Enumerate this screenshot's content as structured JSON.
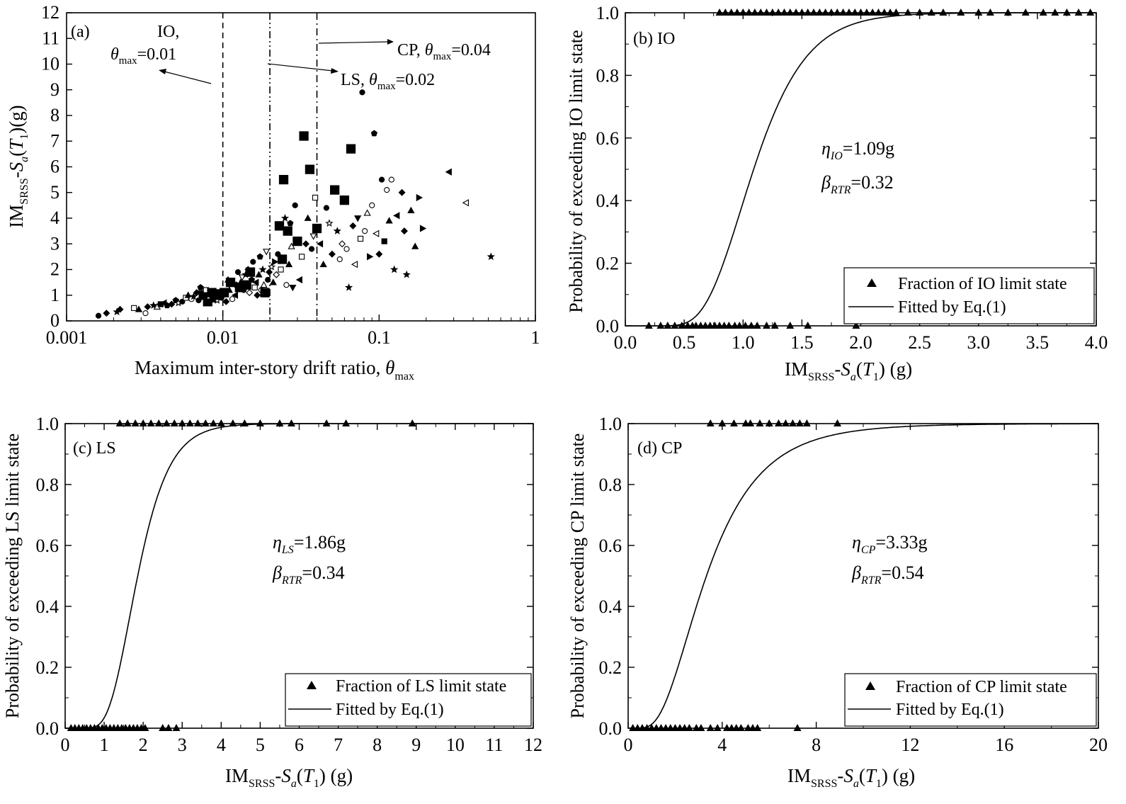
{
  "chart_data": [
    {
      "panel": "(a)",
      "type": "scatter",
      "title": "",
      "xlabel": "Maximum inter-story drift ratio, θmax",
      "xlabel_main": "Maximum inter-story drift ratio, ",
      "xlabel_sym": "θ",
      "xlabel_sub": "max",
      "ylabel": "IMSRSS-Sa(T1)(g)",
      "xscale": "log",
      "xlim": [
        0.001,
        1
      ],
      "ylim": [
        0,
        12
      ],
      "xtick_labels": [
        "0.001",
        "0.01",
        "0.1",
        "1"
      ],
      "xticks": [
        0.001,
        0.01,
        0.1,
        1
      ],
      "yticks": [
        0,
        1,
        2,
        3,
        4,
        5,
        6,
        7,
        8,
        9,
        10,
        11,
        12
      ],
      "threshold_lines": [
        {
          "x": 0.01,
          "style": "dash",
          "label": "IO",
          "name": "IO threshold"
        },
        {
          "x": 0.02,
          "style": "dashdotdot",
          "label": "LS",
          "name": "LS threshold"
        },
        {
          "x": 0.04,
          "style": "dashdot",
          "label": "CP",
          "name": "CP threshold"
        }
      ],
      "annotations": [
        {
          "line1": "IO,",
          "sym": "θ",
          "sub": "max",
          "value": "=0.01"
        },
        {
          "prefix": "LS, ",
          "sym": "θ",
          "sub": "max",
          "value": "=0.02"
        },
        {
          "prefix": "CP, ",
          "sym": "θ",
          "sub": "max",
          "value": "=0.04"
        }
      ],
      "points": [
        [
          0.0016,
          0.2,
          "filled-circle"
        ],
        [
          0.0018,
          0.3,
          "filled-diamond"
        ],
        [
          0.0021,
          0.35,
          "filled-star"
        ],
        [
          0.0022,
          0.45,
          "filled-diamond"
        ],
        [
          0.0027,
          0.5,
          "open-square"
        ],
        [
          0.0029,
          0.45,
          "filled-triangle"
        ],
        [
          0.0032,
          0.3,
          "open-circle"
        ],
        [
          0.0033,
          0.55,
          "filled-diamond"
        ],
        [
          0.0036,
          0.6,
          "filled-star"
        ],
        [
          0.0038,
          0.55,
          "open-triangle"
        ],
        [
          0.004,
          0.65,
          "filled-square"
        ],
        [
          0.0042,
          0.7,
          "filled-left"
        ],
        [
          0.0044,
          0.6,
          "filled-pentagon"
        ],
        [
          0.0047,
          0.65,
          "filled-diamond"
        ],
        [
          0.005,
          0.8,
          "filled-pentagon"
        ],
        [
          0.0052,
          0.7,
          "open-star"
        ],
        [
          0.0055,
          0.75,
          "filled-circle"
        ],
        [
          0.0058,
          0.9,
          "open-square"
        ],
        [
          0.006,
          1.0,
          "filled-triangle"
        ],
        [
          0.0063,
          0.85,
          "open-circle"
        ],
        [
          0.0065,
          0.95,
          "filled-star"
        ],
        [
          0.0068,
          1.1,
          "filled-diamond"
        ],
        [
          0.007,
          0.8,
          "filled-circle"
        ],
        [
          0.0072,
          1.3,
          "filled-pentagon"
        ],
        [
          0.0075,
          1.0,
          "filled-square"
        ],
        [
          0.0078,
          1.2,
          "open-square"
        ],
        [
          0.008,
          0.75,
          "filled-square"
        ],
        [
          0.0082,
          0.95,
          "open-triangle"
        ],
        [
          0.0085,
          1.1,
          "filled-square"
        ],
        [
          0.0088,
          0.9,
          "filled-square"
        ],
        [
          0.009,
          1.05,
          "filled-square"
        ],
        [
          0.0092,
          0.8,
          "open-star"
        ],
        [
          0.0095,
          1.0,
          "filled-square"
        ],
        [
          0.0098,
          0.9,
          "filled-circle"
        ],
        [
          0.0102,
          1.1,
          "filled-square"
        ],
        [
          0.0105,
          0.75,
          "filled-diamond"
        ],
        [
          0.0108,
          1.6,
          "open-triangle"
        ],
        [
          0.011,
          1.2,
          "filled-triangle"
        ],
        [
          0.0112,
          1.5,
          "filled-square"
        ],
        [
          0.0115,
          0.85,
          "open-circle"
        ],
        [
          0.012,
          1.0,
          "filled-left"
        ],
        [
          0.0122,
          1.4,
          "filled-pentagon"
        ],
        [
          0.0125,
          1.9,
          "filled-circle"
        ],
        [
          0.0128,
          1.3,
          "filled-square"
        ],
        [
          0.013,
          1.5,
          "filled-triangle"
        ],
        [
          0.0133,
          1.7,
          "open-down"
        ],
        [
          0.0136,
          1.2,
          "filled-circle"
        ],
        [
          0.014,
          1.8,
          "filled-star"
        ],
        [
          0.0142,
          1.4,
          "filled-square"
        ],
        [
          0.0145,
          2.0,
          "filled-diamond"
        ],
        [
          0.0148,
          1.1,
          "open-diamond"
        ],
        [
          0.015,
          1.9,
          "filled-square"
        ],
        [
          0.0153,
          1.6,
          "filled-pentagon"
        ],
        [
          0.0156,
          2.3,
          "filled-circle"
        ],
        [
          0.016,
          1.3,
          "open-square"
        ],
        [
          0.0163,
          1.5,
          "filled-left"
        ],
        [
          0.0166,
          1.0,
          "filled-diamond"
        ],
        [
          0.017,
          1.8,
          "filled-triangle"
        ],
        [
          0.0173,
          2.5,
          "filled-pentagon"
        ],
        [
          0.0176,
          1.2,
          "open-circle"
        ],
        [
          0.018,
          2.0,
          "filled-star"
        ],
        [
          0.0183,
          1.4,
          "open-triangle"
        ],
        [
          0.0186,
          1.1,
          "filled-square"
        ],
        [
          0.019,
          2.7,
          "open-down"
        ],
        [
          0.0194,
          1.6,
          "filled-circle"
        ],
        [
          0.0198,
          1.9,
          "filled-diamond"
        ],
        [
          0.0205,
          2.1,
          "open-star"
        ],
        [
          0.021,
          1.5,
          "filled-triangle"
        ],
        [
          0.0215,
          2.3,
          "filled-right"
        ],
        [
          0.022,
          1.8,
          "open-diamond"
        ],
        [
          0.0225,
          2.6,
          "filled-circle"
        ],
        [
          0.023,
          3.7,
          "filled-square"
        ],
        [
          0.0235,
          2.0,
          "open-square"
        ],
        [
          0.024,
          2.4,
          "filled-square"
        ],
        [
          0.0245,
          5.5,
          "filled-square"
        ],
        [
          0.025,
          4.0,
          "filled-star"
        ],
        [
          0.0255,
          1.4,
          "open-circle"
        ],
        [
          0.026,
          3.5,
          "filled-square"
        ],
        [
          0.0265,
          2.2,
          "filled-triangle"
        ],
        [
          0.027,
          3.8,
          "filled-pentagon"
        ],
        [
          0.0275,
          2.9,
          "open-triangle"
        ],
        [
          0.028,
          1.3,
          "filled-down"
        ],
        [
          0.029,
          4.5,
          "filled-circle"
        ],
        [
          0.03,
          3.1,
          "filled-square"
        ],
        [
          0.031,
          1.6,
          "filled-left"
        ],
        [
          0.032,
          2.5,
          "open-square"
        ],
        [
          0.033,
          7.2,
          "filled-square"
        ],
        [
          0.034,
          3.0,
          "filled-diamond"
        ],
        [
          0.035,
          4.0,
          "filled-triangle"
        ],
        [
          0.036,
          5.9,
          "filled-square"
        ],
        [
          0.037,
          2.8,
          "filled-circle"
        ],
        [
          0.038,
          3.3,
          "open-down"
        ],
        [
          0.039,
          4.8,
          "open-square"
        ],
        [
          0.04,
          3.6,
          "filled-square"
        ],
        [
          0.042,
          3.0,
          "filled-left"
        ],
        [
          0.044,
          2.2,
          "filled-triangle"
        ],
        [
          0.046,
          4.4,
          "filled-circle"
        ],
        [
          0.048,
          3.8,
          "open-star"
        ],
        [
          0.05,
          2.6,
          "filled-diamond"
        ],
        [
          0.052,
          5.1,
          "filled-square"
        ],
        [
          0.054,
          3.5,
          "filled-star"
        ],
        [
          0.056,
          2.4,
          "open-circle"
        ],
        [
          0.058,
          3.0,
          "open-diamond"
        ],
        [
          0.06,
          4.7,
          "filled-square"
        ],
        [
          0.062,
          2.8,
          "open-circle"
        ],
        [
          0.064,
          1.3,
          "filled-star"
        ],
        [
          0.066,
          6.7,
          "filled-square"
        ],
        [
          0.068,
          3.7,
          "filled-diamond"
        ],
        [
          0.07,
          2.2,
          "open-left"
        ],
        [
          0.073,
          4.0,
          "filled-down"
        ],
        [
          0.076,
          3.2,
          "open-square"
        ],
        [
          0.078,
          8.9,
          "filled-circle"
        ],
        [
          0.081,
          3.5,
          "open-circle"
        ],
        [
          0.084,
          4.2,
          "open-triangle"
        ],
        [
          0.087,
          2.5,
          "filled-right"
        ],
        [
          0.09,
          4.5,
          "open-circle"
        ],
        [
          0.093,
          7.3,
          "filled-pentagon"
        ],
        [
          0.096,
          3.4,
          "open-left"
        ],
        [
          0.1,
          2.6,
          "filled-diamond"
        ],
        [
          0.104,
          5.5,
          "filled-circle"
        ],
        [
          0.108,
          3.1,
          "filled-square"
        ],
        [
          0.112,
          5.1,
          "open-circle"
        ],
        [
          0.116,
          3.9,
          "filled-triangle"
        ],
        [
          0.12,
          5.5,
          "open-circle"
        ],
        [
          0.125,
          2.0,
          "filled-star"
        ],
        [
          0.13,
          4.1,
          "filled-left"
        ],
        [
          0.14,
          5.0,
          "filled-diamond"
        ],
        [
          0.145,
          3.5,
          "filled-diamond"
        ],
        [
          0.15,
          1.8,
          "filled-star"
        ],
        [
          0.16,
          4.3,
          "filled-triangle"
        ],
        [
          0.17,
          2.9,
          "filled-triangle"
        ],
        [
          0.18,
          4.8,
          "filled-right"
        ],
        [
          0.19,
          3.6,
          "filled-right"
        ],
        [
          0.28,
          5.8,
          "filled-left"
        ],
        [
          0.36,
          4.6,
          "open-left"
        ],
        [
          0.52,
          2.5,
          "filled-star"
        ]
      ]
    },
    {
      "panel": "(b) IO",
      "type": "line",
      "xlabel": "IMSRSS-Sa(T1) (g)",
      "ylabel": "Probability of exceeding IO limit state",
      "xlim": [
        0,
        4.0
      ],
      "ylim": [
        0,
        1.0
      ],
      "xticks": [
        0.0,
        0.5,
        1.0,
        1.5,
        2.0,
        2.5,
        3.0,
        3.5,
        4.0
      ],
      "xtick_labels": [
        "0.0",
        "0.5",
        "1.0",
        "1.5",
        "2.0",
        "2.5",
        "3.0",
        "3.5",
        "4.0"
      ],
      "yticks": [
        0.0,
        0.2,
        0.4,
        0.6,
        0.8,
        1.0
      ],
      "ytick_labels": [
        "0.0",
        "0.2",
        "0.4",
        "0.6",
        "0.8",
        "1.0"
      ],
      "eta_sub": "IO",
      "eta_value": "=1.09g",
      "beta_sub": "RTR",
      "beta_value": "=0.32",
      "median": 1.09,
      "dispersion": 0.32,
      "legend": [
        "Fraction of IO limit state",
        "Fitted by Eq.(1)"
      ],
      "fraction_zero": [
        0.2,
        0.3,
        0.36,
        0.42,
        0.48,
        0.53,
        0.57,
        0.6,
        0.64,
        0.68,
        0.72,
        0.76,
        0.8,
        0.84,
        0.88,
        0.93,
        0.97,
        1.02,
        1.07,
        1.12,
        1.2,
        1.27,
        1.4,
        1.55,
        1.96
      ],
      "fraction_one": [
        0.8,
        0.85,
        0.9,
        0.95,
        1.0,
        1.05,
        1.1,
        1.15,
        1.2,
        1.25,
        1.3,
        1.35,
        1.4,
        1.45,
        1.5,
        1.55,
        1.6,
        1.65,
        1.7,
        1.75,
        1.8,
        1.85,
        1.9,
        1.95,
        2.0,
        2.05,
        2.1,
        2.15,
        2.2,
        2.25,
        2.3,
        2.4,
        2.5,
        2.6,
        2.7,
        2.85,
        3.0,
        3.1,
        3.25,
        3.4,
        3.55,
        3.65,
        3.75,
        3.85,
        3.95
      ]
    },
    {
      "panel": "(c) LS",
      "type": "line",
      "xlabel": "IMSRSS-Sa(T1) (g)",
      "ylabel": "Probability of exceeding LS limit state",
      "xlim": [
        0,
        12
      ],
      "ylim": [
        0,
        1.0
      ],
      "xticks": [
        0,
        1,
        2,
        3,
        4,
        5,
        6,
        7,
        8,
        9,
        10,
        11,
        12
      ],
      "xtick_labels": [
        "0",
        "1",
        "2",
        "3",
        "4",
        "5",
        "6",
        "7",
        "8",
        "9",
        "10",
        "11",
        "12"
      ],
      "yticks": [
        0.0,
        0.2,
        0.4,
        0.6,
        0.8,
        1.0
      ],
      "ytick_labels": [
        "0.0",
        "0.2",
        "0.4",
        "0.6",
        "0.8",
        "1.0"
      ],
      "eta_sub": "LS",
      "eta_value": "=1.86g",
      "beta_sub": "RTR",
      "beta_value": "=0.34",
      "median": 1.86,
      "dispersion": 0.34,
      "legend": [
        "Fraction of LS limit state",
        "Fitted by Eq.(1)"
      ],
      "fraction_zero": [
        0.15,
        0.25,
        0.35,
        0.45,
        0.55,
        0.65,
        0.75,
        0.85,
        0.95,
        1.05,
        1.15,
        1.25,
        1.35,
        1.45,
        1.55,
        1.65,
        1.75,
        1.85,
        1.95,
        2.05,
        2.5,
        2.65,
        2.85
      ],
      "fraction_one": [
        1.4,
        1.6,
        1.8,
        2.0,
        2.2,
        2.4,
        2.6,
        2.8,
        3.0,
        3.2,
        3.4,
        3.6,
        3.8,
        4.0,
        4.3,
        4.6,
        5.0,
        5.5,
        5.8,
        6.7,
        7.2,
        8.9
      ]
    },
    {
      "panel": "(d) CP",
      "type": "line",
      "xlabel": "IMSRSS-Sa(T1) (g)",
      "ylabel": "Probability of exceeding CP limit state",
      "xlim": [
        0,
        20
      ],
      "ylim": [
        0,
        1.0
      ],
      "xticks": [
        0,
        4,
        8,
        12,
        16,
        20
      ],
      "xtick_labels": [
        "0",
        "4",
        "8",
        "12",
        "16",
        "20"
      ],
      "yticks": [
        0.0,
        0.2,
        0.4,
        0.6,
        0.8,
        1.0
      ],
      "ytick_labels": [
        "0.0",
        "0.2",
        "0.4",
        "0.6",
        "0.8",
        "1.0"
      ],
      "eta_sub": "CP",
      "eta_value": "=3.33g",
      "beta_sub": "RTR",
      "beta_value": "=0.54",
      "median": 3.33,
      "dispersion": 0.54,
      "legend": [
        "Fraction of CP limit state",
        "Fitted by Eq.(1)"
      ],
      "fraction_zero": [
        0.2,
        0.4,
        0.6,
        0.8,
        1.0,
        1.2,
        1.4,
        1.6,
        1.8,
        2.0,
        2.2,
        2.4,
        2.6,
        2.9,
        3.1,
        3.5,
        3.8,
        4.2,
        4.4,
        4.6,
        4.8,
        5.1,
        5.3,
        5.5,
        7.2
      ],
      "fraction_one": [
        3.5,
        4.0,
        4.5,
        5.0,
        5.2,
        5.6,
        6.0,
        6.4,
        6.7,
        7.0,
        7.3,
        7.6,
        8.9
      ]
    }
  ]
}
